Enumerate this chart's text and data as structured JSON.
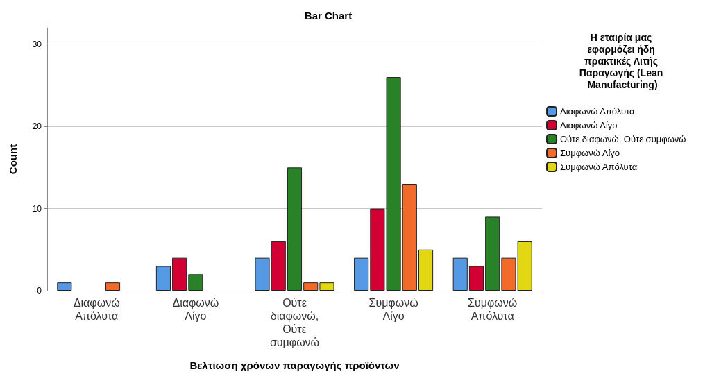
{
  "chart_data": {
    "type": "bar",
    "title": "Bar Chart",
    "xlabel": "Βελτίωση χρόνων παραγωγής προϊόντων",
    "ylabel": "Count",
    "legend_title": "Η εταιρία μας εφαρμόζει ήδη πρακτικές Λιτής Παραγωγής (Lean Manufacturing)",
    "categories": [
      "Διαφωνώ Απόλυτα",
      "Διαφωνώ Λίγο",
      "Ούτε διαφωνώ, Ούτε συμφωνώ",
      "Συμφωνώ Λίγο",
      "Συμφωνώ Απόλυτα"
    ],
    "series": [
      {
        "name": "Διαφωνώ Απόλυτα",
        "color": "#5598e3",
        "values": [
          1,
          3,
          4,
          4,
          4
        ]
      },
      {
        "name": "Διαφωνώ Λίγο",
        "color": "#d20033",
        "values": [
          null,
          4,
          6,
          10,
          3
        ]
      },
      {
        "name": "Ούτε διαφωνώ, Ούτε συμφωνώ",
        "color": "#2a8228",
        "values": [
          null,
          2,
          15,
          26,
          9
        ]
      },
      {
        "name": "Συμφωνώ Λίγο",
        "color": "#f26a2a",
        "values": [
          1,
          null,
          1,
          13,
          4
        ]
      },
      {
        "name": "Συμφωνώ Απόλυτα",
        "color": "#e3d714",
        "values": [
          null,
          null,
          1,
          5,
          6
        ]
      }
    ],
    "ylim": [
      0,
      32
    ],
    "yticks": [
      0,
      10,
      20,
      30
    ],
    "grid": "y",
    "legend": "right"
  }
}
